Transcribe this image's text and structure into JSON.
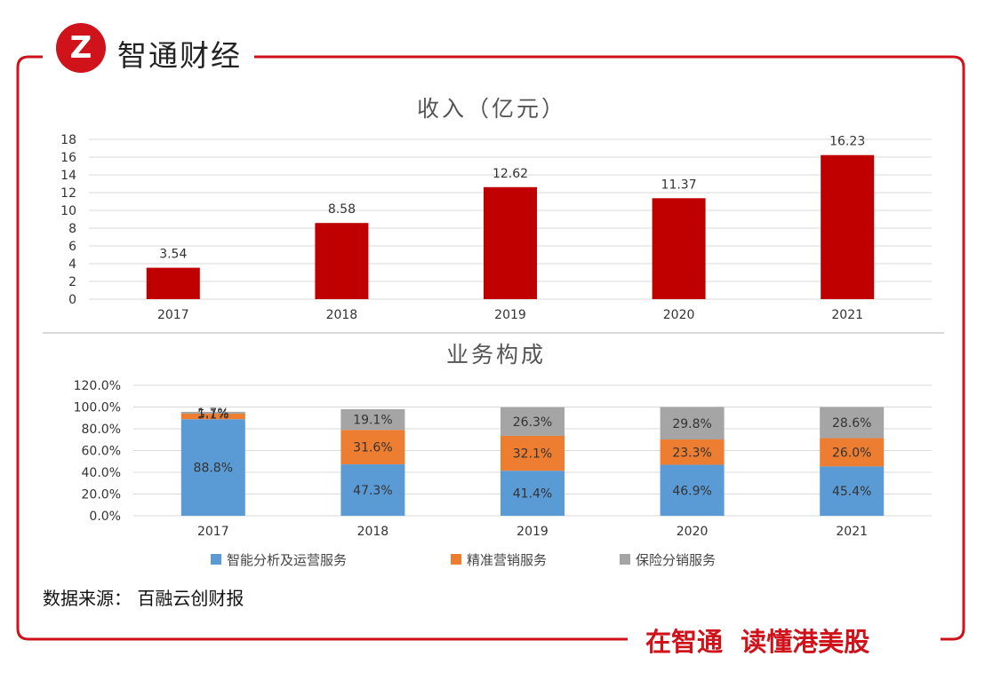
{
  "brand": {
    "logo_text": "Z",
    "name": "智通财经"
  },
  "footer": {
    "source": "数据来源：  百融云创财报",
    "slogan": "在智通  读懂港美股"
  },
  "colors": {
    "frame": "#d0121b",
    "revenue_bar": "#c00000",
    "smart": "#5b9bd5",
    "marketing": "#ed7d31",
    "insurance": "#a5a5a5",
    "grid": "#d9d9d9"
  },
  "chart_data": [
    {
      "type": "bar",
      "title": "收入（亿元）",
      "categories": [
        "2017",
        "2018",
        "2019",
        "2020",
        "2021"
      ],
      "values": [
        3.54,
        8.58,
        12.62,
        11.37,
        16.23
      ],
      "value_labels": [
        "3.54",
        "8.58",
        "12.62",
        "11.37",
        "16.23"
      ],
      "ylim": [
        0,
        18
      ],
      "yticks": [
        "0",
        "2",
        "4",
        "6",
        "8",
        "10",
        "12",
        "14",
        "16",
        "18"
      ],
      "grid": true
    },
    {
      "type": "stacked_bar",
      "title": "业务构成",
      "categories": [
        "2017",
        "2018",
        "2019",
        "2020",
        "2021"
      ],
      "series": [
        {
          "name": "智能分析及运营服务",
          "values": [
            88.8,
            47.3,
            41.4,
            46.9,
            45.4
          ],
          "labels": [
            "88.8%",
            "47.3%",
            "41.4%",
            "46.9%",
            "45.4%"
          ]
        },
        {
          "name": "精准营销服务",
          "values": [
            5.1,
            31.6,
            32.1,
            23.3,
            26.0
          ],
          "labels": [
            "5.1%",
            "31.6%",
            "32.1%",
            "23.3%",
            "26.0%"
          ]
        },
        {
          "name": "保险分销服务",
          "values": [
            1.7,
            19.1,
            26.3,
            29.8,
            28.6
          ],
          "labels": [
            "1.7%",
            "19.1%",
            "26.3%",
            "29.8%",
            "28.6%"
          ]
        }
      ],
      "ylim": [
        0,
        120
      ],
      "yticks": [
        "0.0%",
        "20.0%",
        "40.0%",
        "60.0%",
        "80.0%",
        "100.0%",
        "120.0%"
      ],
      "grid": true,
      "legend": "bottom"
    }
  ]
}
